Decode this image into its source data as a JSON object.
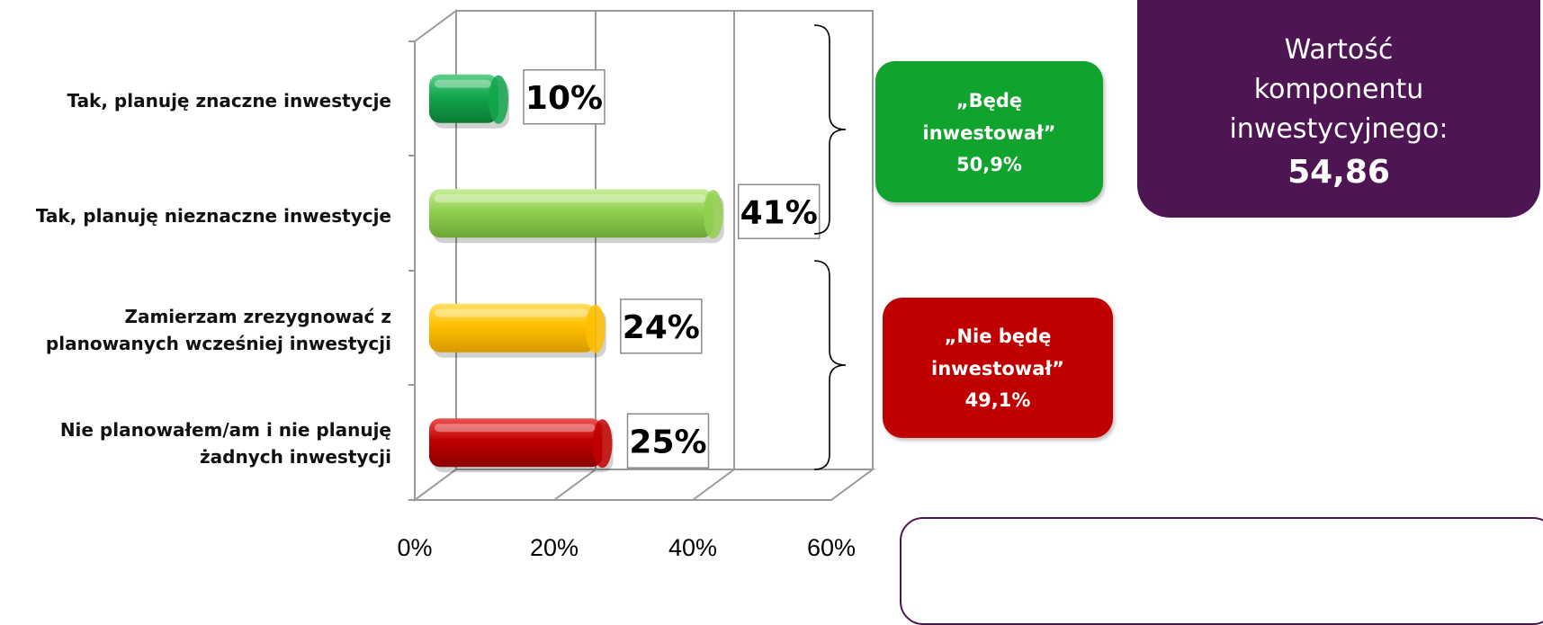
{
  "chart_data": {
    "type": "bar",
    "orientation": "horizontal",
    "categories": [
      "Tak, planuję znaczne inwestycje",
      "Tak, planuję nieznaczne inwestycje",
      "Zamierzam zrezygnować z planowanych wcześniej inwestycji",
      "Nie planowałem/am i nie planuję żadnych inwestycji"
    ],
    "values": [
      10,
      41,
      24,
      25
    ],
    "value_labels": [
      "10%",
      "41%",
      "24%",
      "25%"
    ],
    "bar_colors": [
      "#12a64c",
      "#92d050",
      "#ffc000",
      "#c00000"
    ],
    "x_ticks": [
      "0%",
      "20%",
      "40%",
      "60%"
    ],
    "xlim": [
      0,
      60
    ],
    "grid": true,
    "style": "3d"
  },
  "groups": [
    {
      "label": "„Będę inwestował”",
      "value": "50,9%",
      "color": "#10a32d"
    },
    {
      "label": "„Nie będę inwestował”",
      "value": "49,1%",
      "color": "#c00000"
    }
  ],
  "summary": {
    "label": "Wartość komponentu inwestycyjnego:",
    "value": "54,86",
    "color": "#4d1653"
  }
}
